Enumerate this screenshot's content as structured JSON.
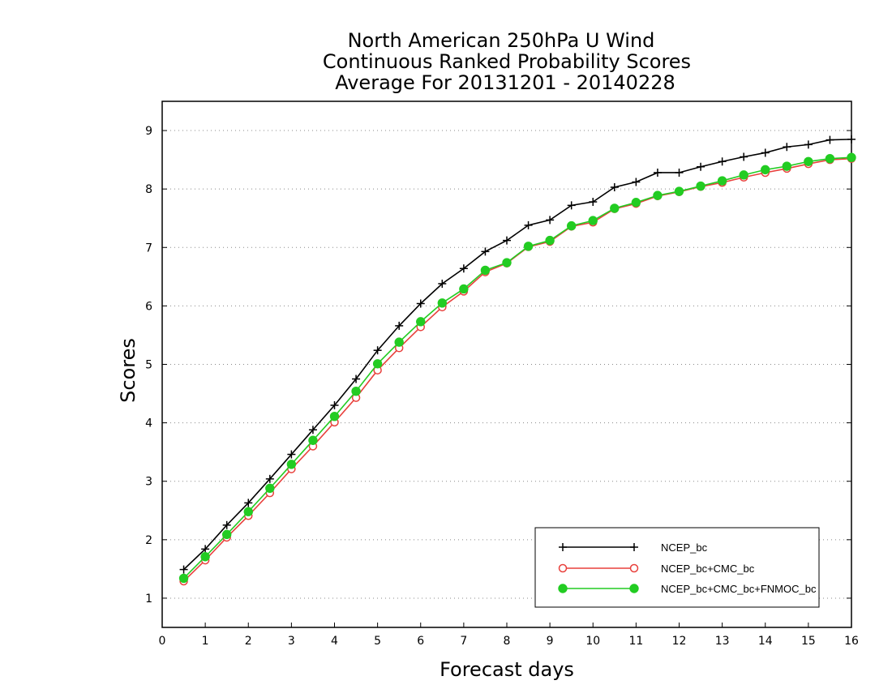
{
  "chart_data": {
    "type": "line",
    "title": [
      "North American 250hPa U Wind",
      "Continuous Ranked Probability Scores",
      "Average For 20131201 - 20140228"
    ],
    "xlabel": "Forecast days",
    "ylabel": "Scores",
    "xlim": [
      0,
      16
    ],
    "ylim": [
      0.5,
      9.5
    ],
    "xticks": [
      "0",
      "1",
      "2",
      "3",
      "4",
      "5",
      "6",
      "7",
      "8",
      "9",
      "10",
      "11",
      "12",
      "13",
      "14",
      "15",
      "16"
    ],
    "yticks": [
      "1",
      "2",
      "3",
      "4",
      "5",
      "6",
      "7",
      "8",
      "9"
    ],
    "grid": "horizontal dotted",
    "legend_position": "bottom-right",
    "x": [
      0.5,
      1,
      1.5,
      2,
      2.5,
      3,
      3.5,
      4,
      4.5,
      5,
      5.5,
      6,
      6.5,
      7,
      7.5,
      8,
      8.5,
      9,
      9.5,
      10,
      10.5,
      11,
      11.5,
      12,
      12.5,
      13,
      13.5,
      14,
      14.5,
      15,
      15.5,
      16
    ],
    "series": [
      {
        "name": "NCEP_bc",
        "color": "#000000",
        "marker": "plus",
        "values": [
          1.49,
          1.84,
          2.25,
          2.63,
          3.04,
          3.46,
          3.88,
          4.3,
          4.75,
          5.24,
          5.66,
          6.04,
          6.38,
          6.64,
          6.93,
          7.12,
          7.38,
          7.47,
          7.72,
          7.78,
          8.03,
          8.12,
          8.28,
          8.28,
          8.38,
          8.47,
          8.55,
          8.62,
          8.72,
          8.76,
          8.84,
          8.85
        ]
      },
      {
        "name": "NCEP_bc+CMC_bc",
        "color": "#e8403c",
        "marker": "open-circle",
        "values": [
          1.29,
          1.65,
          2.04,
          2.41,
          2.8,
          3.21,
          3.6,
          4.01,
          4.43,
          4.9,
          5.28,
          5.64,
          5.98,
          6.25,
          6.58,
          6.73,
          7.01,
          7.1,
          7.36,
          7.43,
          7.66,
          7.75,
          7.88,
          7.95,
          8.04,
          8.11,
          8.2,
          8.28,
          8.35,
          8.43,
          8.5,
          8.52
        ]
      },
      {
        "name": "NCEP_bc+CMC_bc+FNMOC_bc",
        "color": "#22cc22",
        "marker": "filled-circle",
        "values": [
          1.34,
          1.71,
          2.09,
          2.48,
          2.88,
          3.29,
          3.7,
          4.11,
          4.54,
          5.01,
          5.38,
          5.73,
          6.05,
          6.29,
          6.61,
          6.74,
          7.02,
          7.12,
          7.37,
          7.46,
          7.67,
          7.77,
          7.89,
          7.96,
          8.05,
          8.14,
          8.24,
          8.33,
          8.39,
          8.47,
          8.52,
          8.54
        ]
      }
    ]
  }
}
